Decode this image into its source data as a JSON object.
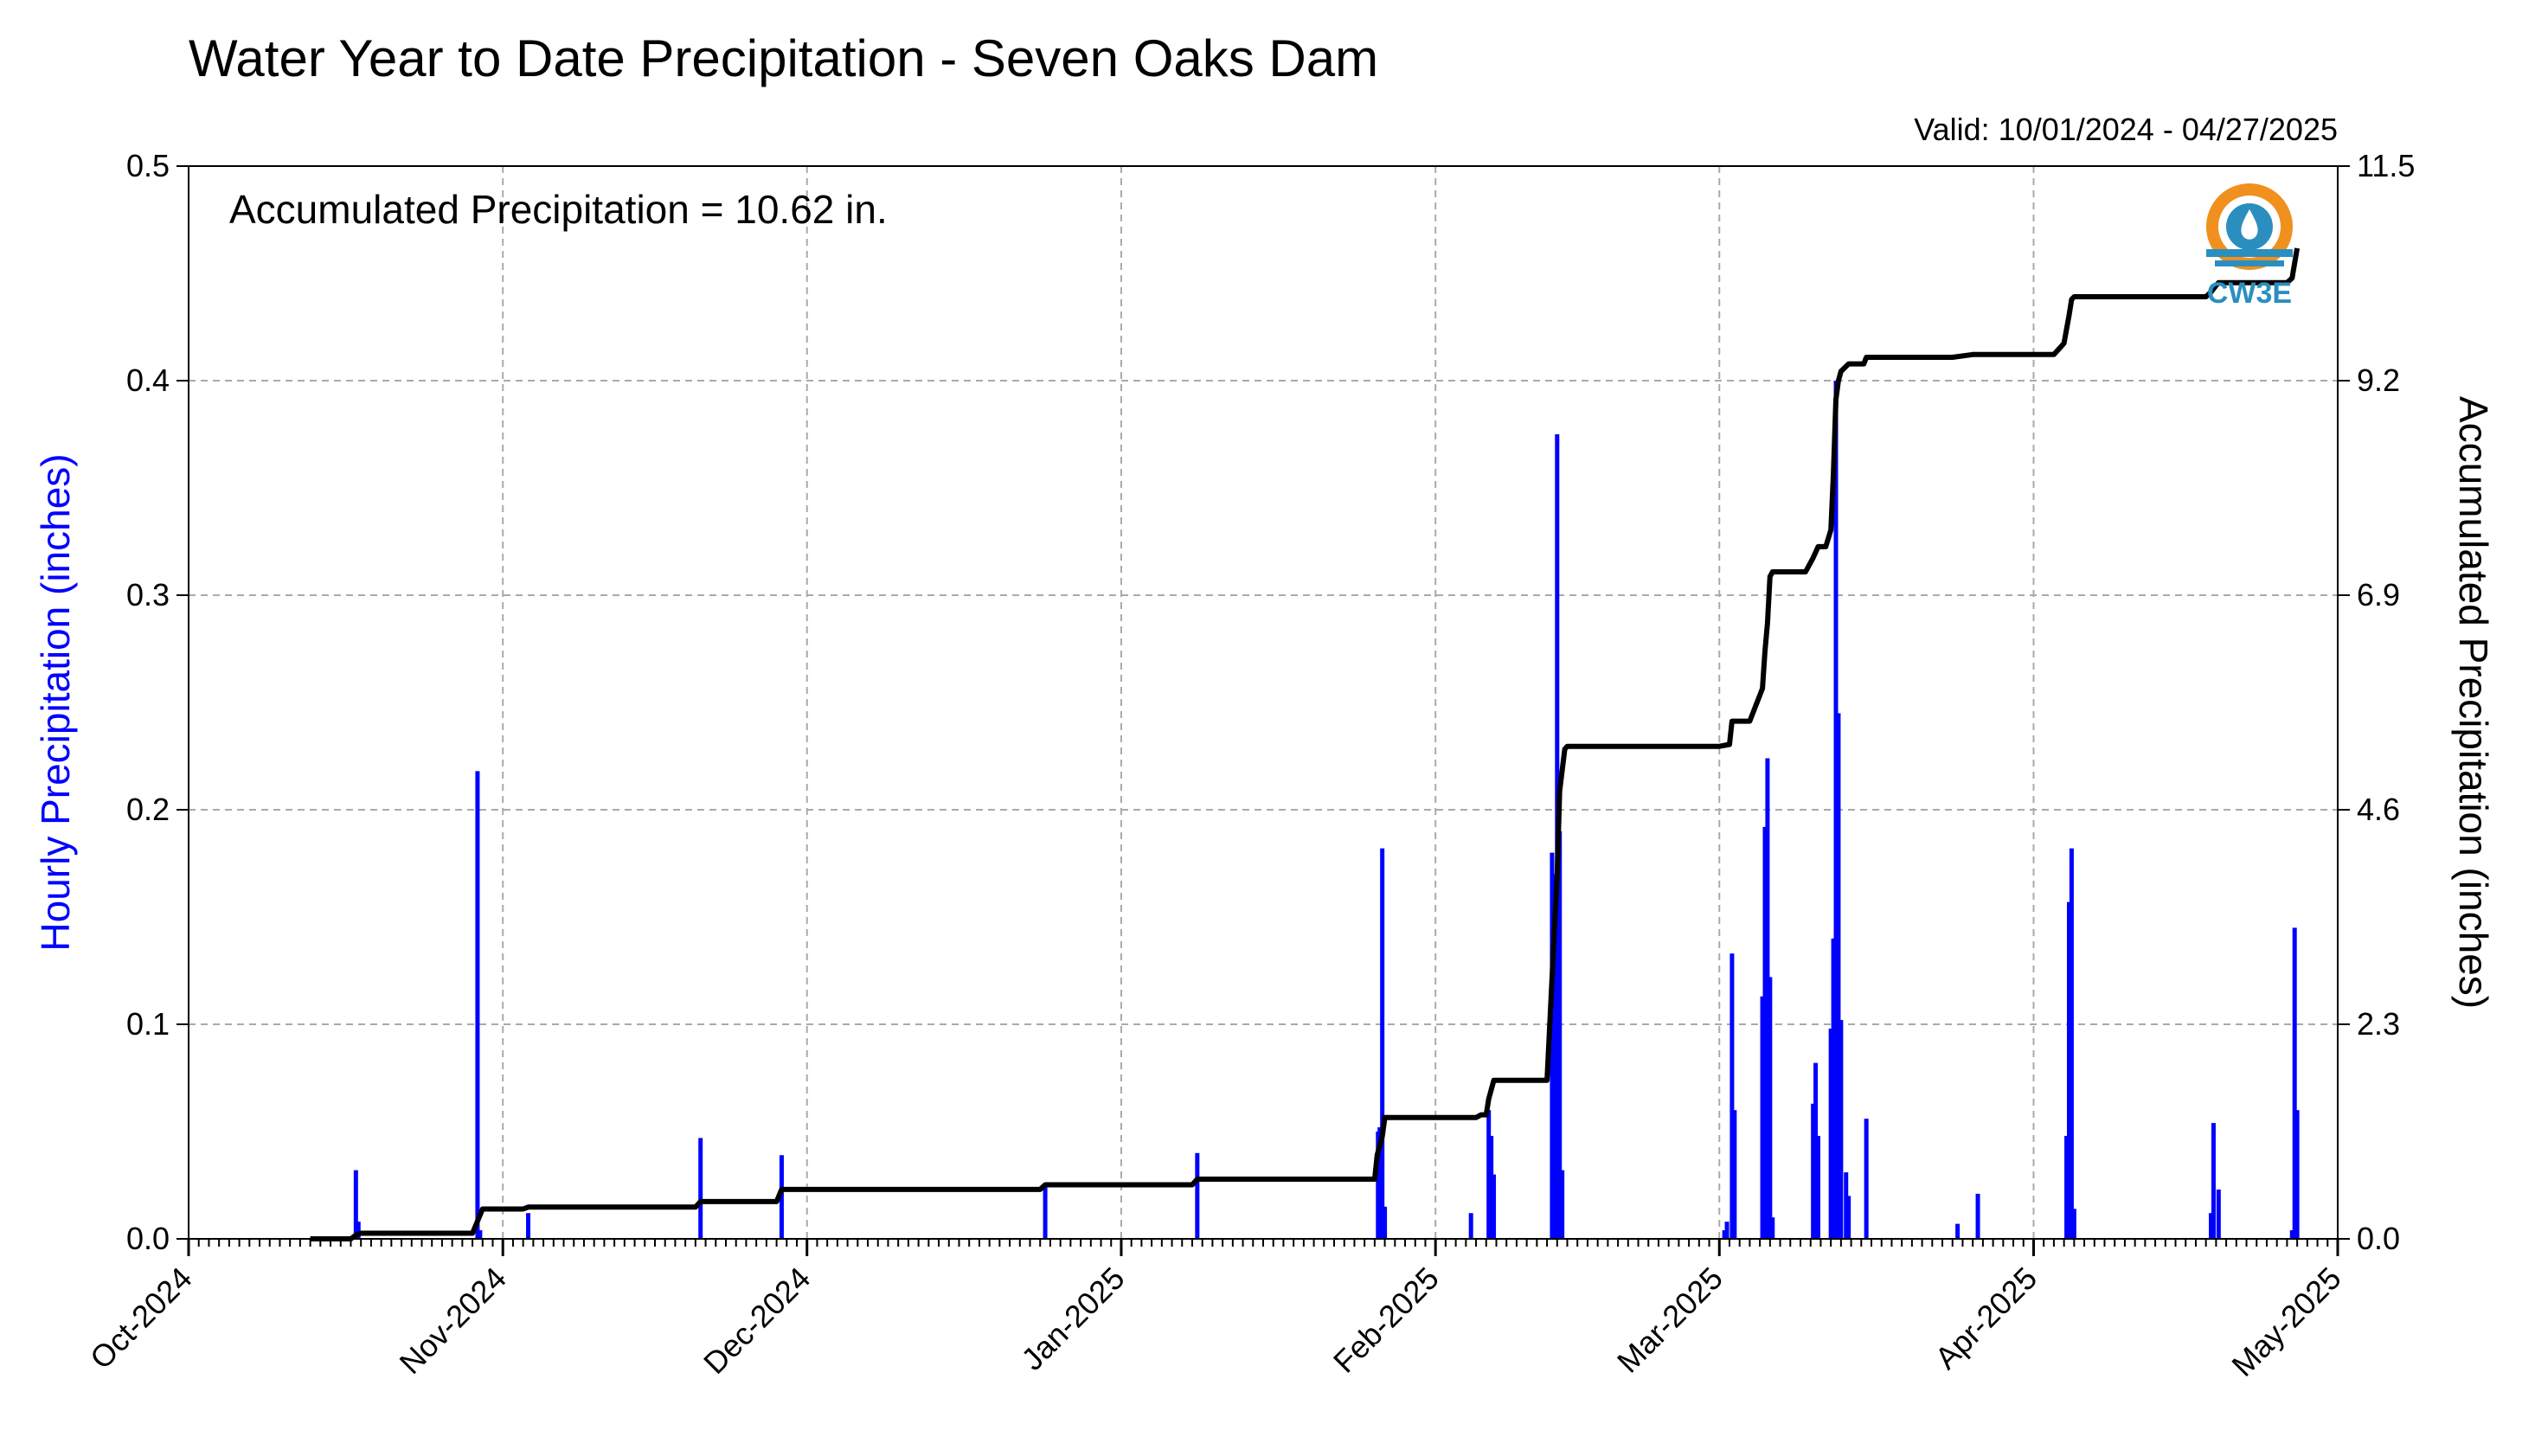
{
  "chart_data": {
    "type": "bar+line",
    "title": "Water Year to Date Precipitation - Seven Oaks Dam",
    "valid_text": "Valid: 10/01/2024 - 04/27/2025",
    "annotation": "Accumulated Precipitation = 10.62 in.",
    "ylabel_left": "Hourly Precipitation (inches)",
    "ylabel_right": "Accumulated Precipitation (inches)",
    "x_axis": {
      "start": "2024-10-01",
      "end": "2025-05-01",
      "tick_labels": [
        "Oct-2024",
        "Nov-2024",
        "Dec-2024",
        "Jan-2025",
        "Feb-2025",
        "Mar-2025",
        "Apr-2025",
        "May-2025"
      ],
      "tick_dates": [
        "2024-10-01",
        "2024-11-01",
        "2024-12-01",
        "2025-01-01",
        "2025-02-01",
        "2025-03-01",
        "2025-04-01",
        "2025-05-01"
      ]
    },
    "y_left": {
      "ylim": [
        0,
        0.5
      ],
      "ticks": [
        "0.0",
        "0.1",
        "0.2",
        "0.3",
        "0.4",
        "0.5"
      ]
    },
    "y_right": {
      "ylim": [
        0,
        11.5
      ],
      "ticks": [
        "0.0",
        "2.3",
        "4.6",
        "6.9",
        "9.2",
        "11.5"
      ]
    },
    "grid": true,
    "series": [
      {
        "name": "Hourly Precipitation",
        "type": "bar",
        "color": "#0000ff",
        "points": [
          [
            "2024-10-17T12",
            0.032
          ],
          [
            "2024-10-17T18",
            0.008
          ],
          [
            "2024-10-29T12",
            0.218
          ],
          [
            "2024-10-29T18",
            0.004
          ],
          [
            "2024-11-03T12",
            0.012
          ],
          [
            "2024-11-20T12",
            0.047
          ],
          [
            "2024-11-28T12",
            0.039
          ],
          [
            "2024-12-24T12",
            0.026
          ],
          [
            "2025-01-08T12",
            0.04
          ],
          [
            "2025-01-26T08",
            0.05
          ],
          [
            "2025-01-26T12",
            0.052
          ],
          [
            "2025-01-26T18",
            0.182
          ],
          [
            "2025-01-27T00",
            0.015
          ],
          [
            "2025-02-04T12",
            0.012
          ],
          [
            "2025-02-06T06",
            0.06
          ],
          [
            "2025-02-06T12",
            0.048
          ],
          [
            "2025-02-06T18",
            0.03
          ],
          [
            "2025-02-12T12",
            0.18
          ],
          [
            "2025-02-12T18",
            0.17
          ],
          [
            "2025-02-13T00",
            0.375
          ],
          [
            "2025-02-13T06",
            0.19
          ],
          [
            "2025-02-13T12",
            0.032
          ],
          [
            "2025-03-01T12",
            0.004
          ],
          [
            "2025-03-01T18",
            0.008
          ],
          [
            "2025-03-02T06",
            0.133
          ],
          [
            "2025-03-02T12",
            0.06
          ],
          [
            "2025-03-05T06",
            0.113
          ],
          [
            "2025-03-05T12",
            0.192
          ],
          [
            "2025-03-05T18",
            0.224
          ],
          [
            "2025-03-06T00",
            0.122
          ],
          [
            "2025-03-06T06",
            0.01
          ],
          [
            "2025-03-10T06",
            0.063
          ],
          [
            "2025-03-10T12",
            0.082
          ],
          [
            "2025-03-10T18",
            0.048
          ],
          [
            "2025-03-12T00",
            0.098
          ],
          [
            "2025-03-12T06",
            0.14
          ],
          [
            "2025-03-12T12",
            0.4
          ],
          [
            "2025-03-12T18",
            0.245
          ],
          [
            "2025-03-13T00",
            0.102
          ],
          [
            "2025-03-13T12",
            0.031
          ],
          [
            "2025-03-13T18",
            0.02
          ],
          [
            "2025-03-15T12",
            0.056
          ],
          [
            "2025-03-24T12",
            0.007
          ],
          [
            "2025-03-26T12",
            0.021
          ],
          [
            "2025-04-04T06",
            0.048
          ],
          [
            "2025-04-04T12",
            0.157
          ],
          [
            "2025-04-04T18",
            0.182
          ],
          [
            "2025-04-05T00",
            0.014
          ],
          [
            "2025-04-18T12",
            0.012
          ],
          [
            "2025-04-18T18",
            0.054
          ],
          [
            "2025-04-19T06",
            0.023
          ],
          [
            "2025-04-26T12",
            0.004
          ],
          [
            "2025-04-26T18",
            0.145
          ],
          [
            "2025-04-27T00",
            0.06
          ]
        ]
      },
      {
        "name": "Accumulated Precipitation",
        "type": "line",
        "color": "#000000",
        "points": [
          [
            "2024-10-13",
            0.0
          ],
          [
            "2024-10-17",
            0.0
          ],
          [
            "2024-10-17T12",
            0.04
          ],
          [
            "2024-10-18",
            0.06
          ],
          [
            "2024-10-29",
            0.06
          ],
          [
            "2024-10-30",
            0.32
          ],
          [
            "2024-11-03",
            0.32
          ],
          [
            "2024-11-03T12",
            0.34
          ],
          [
            "2024-11-20",
            0.34
          ],
          [
            "2024-11-20T12",
            0.4
          ],
          [
            "2024-11-28",
            0.4
          ],
          [
            "2024-11-28T12",
            0.53
          ],
          [
            "2024-12-24",
            0.53
          ],
          [
            "2024-12-24T12",
            0.58
          ],
          [
            "2025-01-08",
            0.58
          ],
          [
            "2025-01-08T12",
            0.64
          ],
          [
            "2025-01-26",
            0.64
          ],
          [
            "2025-01-26T06",
            0.9
          ],
          [
            "2025-01-26T18",
            1.1
          ],
          [
            "2025-01-27",
            1.3
          ],
          [
            "2025-02-05",
            1.3
          ],
          [
            "2025-02-05T12",
            1.33
          ],
          [
            "2025-02-06",
            1.33
          ],
          [
            "2025-02-06T06",
            1.5
          ],
          [
            "2025-02-06T18",
            1.7
          ],
          [
            "2025-02-12",
            1.7
          ],
          [
            "2025-02-12T12",
            2.8
          ],
          [
            "2025-02-13",
            3.9
          ],
          [
            "2025-02-13T06",
            4.8
          ],
          [
            "2025-02-13T18",
            5.25
          ],
          [
            "2025-02-14",
            5.28
          ],
          [
            "2025-03-01",
            5.28
          ],
          [
            "2025-03-02",
            5.3
          ],
          [
            "2025-03-02T06",
            5.55
          ],
          [
            "2025-03-04",
            5.55
          ],
          [
            "2025-03-05T06",
            5.9
          ],
          [
            "2025-03-05T12",
            6.3
          ],
          [
            "2025-03-05T18",
            6.6
          ],
          [
            "2025-03-06",
            7.1
          ],
          [
            "2025-03-06T06",
            7.15
          ],
          [
            "2025-03-09T12",
            7.15
          ],
          [
            "2025-03-10T06",
            7.3
          ],
          [
            "2025-03-10T18",
            7.42
          ],
          [
            "2025-03-11T12",
            7.42
          ],
          [
            "2025-03-12",
            7.6
          ],
          [
            "2025-03-12T06",
            8.2
          ],
          [
            "2025-03-12T12",
            9.0
          ],
          [
            "2025-03-12T18",
            9.2
          ],
          [
            "2025-03-13",
            9.3
          ],
          [
            "2025-03-13T18",
            9.38
          ],
          [
            "2025-03-15T06",
            9.38
          ],
          [
            "2025-03-15T12",
            9.45
          ],
          [
            "2025-03-24",
            9.45
          ],
          [
            "2025-03-26",
            9.48
          ],
          [
            "2025-04-03",
            9.48
          ],
          [
            "2025-04-04",
            9.6
          ],
          [
            "2025-04-04T12",
            9.9
          ],
          [
            "2025-04-04T18",
            10.07
          ],
          [
            "2025-04-05",
            10.1
          ],
          [
            "2025-04-18",
            10.1
          ],
          [
            "2025-04-18T12",
            10.15
          ],
          [
            "2025-04-19",
            10.22
          ],
          [
            "2025-04-19T06",
            10.25
          ],
          [
            "2025-04-26",
            10.25
          ],
          [
            "2025-04-26T12",
            10.3
          ],
          [
            "2025-04-27",
            10.62
          ]
        ]
      }
    ]
  },
  "logo": {
    "text": "CW3E",
    "icon": "water-drop-logo-icon",
    "colors": {
      "orange": "#f0901e",
      "blue": "#2a8fbf"
    }
  }
}
